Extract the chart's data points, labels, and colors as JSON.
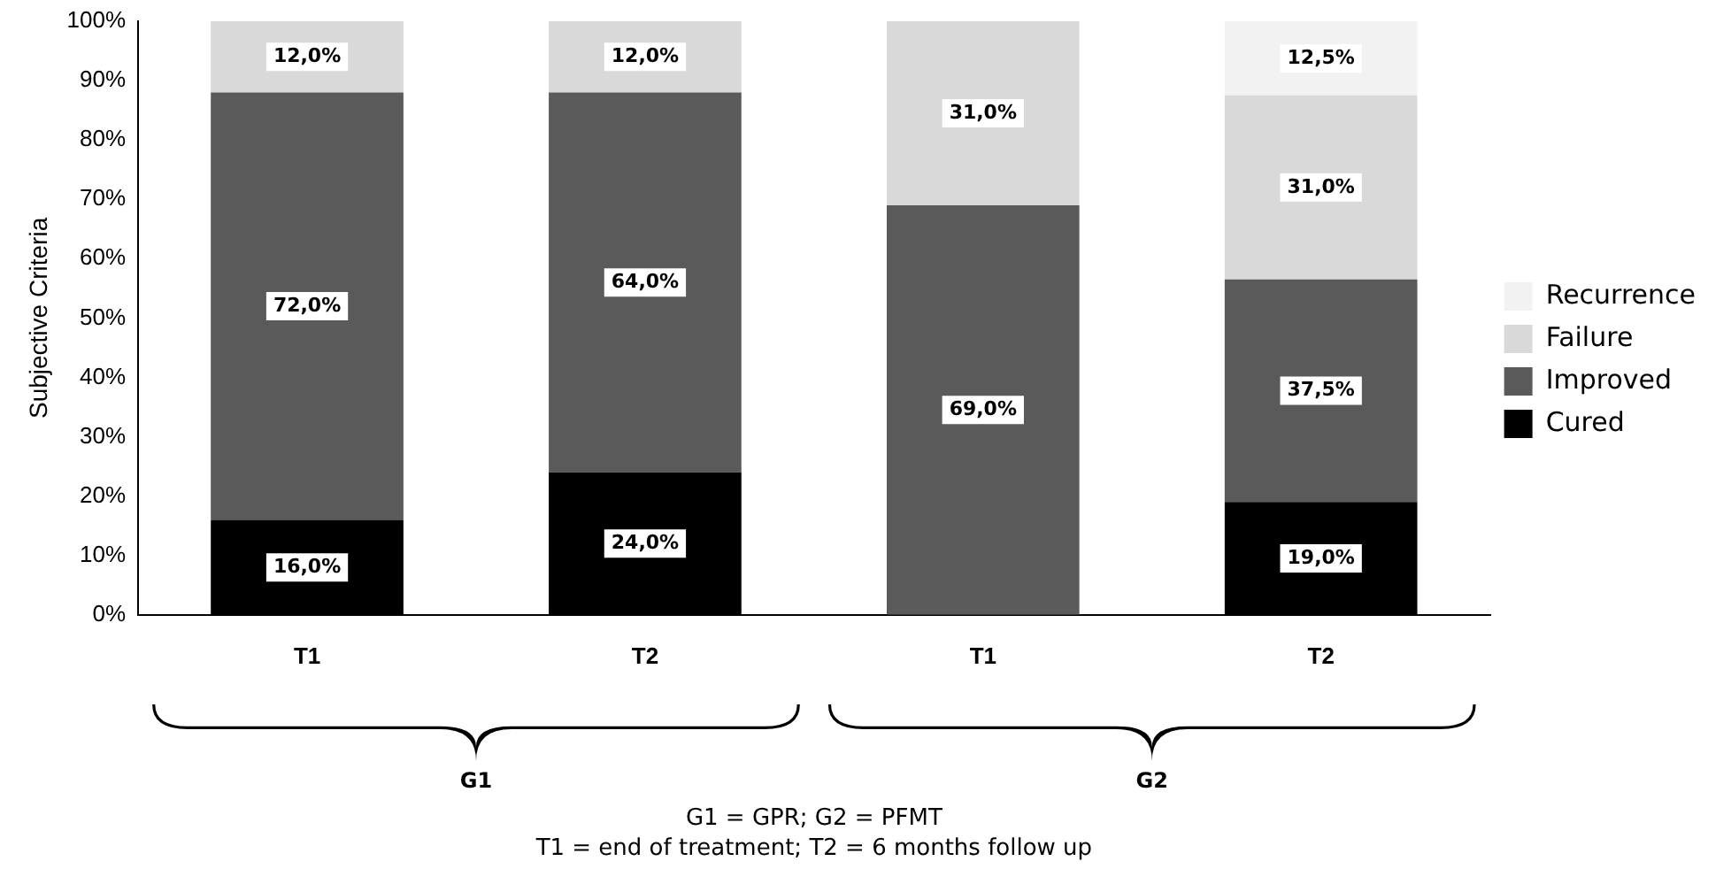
{
  "chart_data": {
    "type": "bar",
    "stacked": true,
    "ylabel": "Subjective Criteria",
    "categories": [
      "T1",
      "T2",
      "T1",
      "T2"
    ],
    "series": [
      {
        "name": "Cured",
        "color": "#000000",
        "values": [
          16,
          24,
          0,
          19
        ],
        "value_labels": [
          "16,0%",
          "24,0%",
          null,
          "19,0%"
        ]
      },
      {
        "name": "Improved",
        "color": "#5a5a5a",
        "values": [
          72,
          64,
          69,
          37.5
        ],
        "value_labels": [
          "72,0%",
          "64,0%",
          "69,0%",
          "37,5%"
        ]
      },
      {
        "name": "Failure",
        "color": "#d9d9d9",
        "values": [
          12,
          12,
          31,
          31
        ],
        "value_labels": [
          "12,0%",
          "12,0%",
          "31,0%",
          "31,0%"
        ]
      },
      {
        "name": "Recurrence",
        "color": "#f2f2f2",
        "values": [
          0,
          0,
          0,
          12.5
        ],
        "value_labels": [
          null,
          null,
          null,
          "12,5%"
        ]
      }
    ],
    "ylim": [
      0,
      100
    ],
    "yticks": [
      {
        "value": 0,
        "label": "0%"
      },
      {
        "value": 10,
        "label": "10%"
      },
      {
        "value": 20,
        "label": "20%"
      },
      {
        "value": 30,
        "label": "30%"
      },
      {
        "value": 40,
        "label": "40%"
      },
      {
        "value": 50,
        "label": "50%"
      },
      {
        "value": 60,
        "label": "60%"
      },
      {
        "value": 70,
        "label": "70%"
      },
      {
        "value": 80,
        "label": "80%"
      },
      {
        "value": 90,
        "label": "90%"
      },
      {
        "value": 100,
        "label": "100%"
      }
    ],
    "grid": false,
    "legend": "right",
    "annotations": [
      "G1",
      "G2",
      "G1 = GPR; G2 = PFMT",
      "T1 = end of treatment; T2 = 6 months follow up"
    ]
  }
}
